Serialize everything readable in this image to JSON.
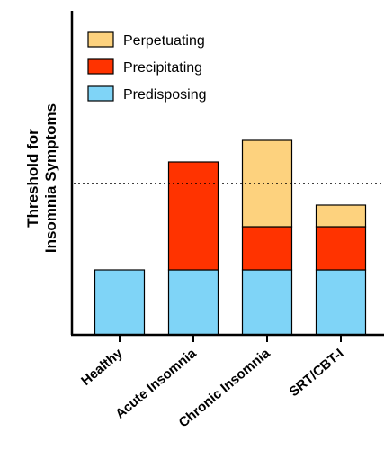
{
  "chart_data": {
    "type": "bar",
    "stacked": true,
    "ylabel_lines": [
      "Threshold for",
      "Insomnia Symptoms"
    ],
    "xlabel": "",
    "categories": [
      "Healthy",
      "Acute Insomnia",
      "Chronic Insomnia",
      "SRT/CBT-I"
    ],
    "series": [
      {
        "name": "Predisposing",
        "color": "#7fd4f7",
        "values": [
          3,
          3,
          3,
          3
        ]
      },
      {
        "name": "Precipitating",
        "color": "#ff3300",
        "values": [
          0,
          5,
          2,
          2
        ]
      },
      {
        "name": "Perpetuating",
        "color": "#fdd27e",
        "values": [
          0,
          0,
          4,
          1
        ]
      }
    ],
    "legend_order": [
      "Perpetuating",
      "Precipitating",
      "Predisposing"
    ],
    "threshold": 7,
    "threshold_style": "dotted",
    "ylim": [
      0,
      15
    ],
    "legend_position": "top-left",
    "grid": false
  }
}
